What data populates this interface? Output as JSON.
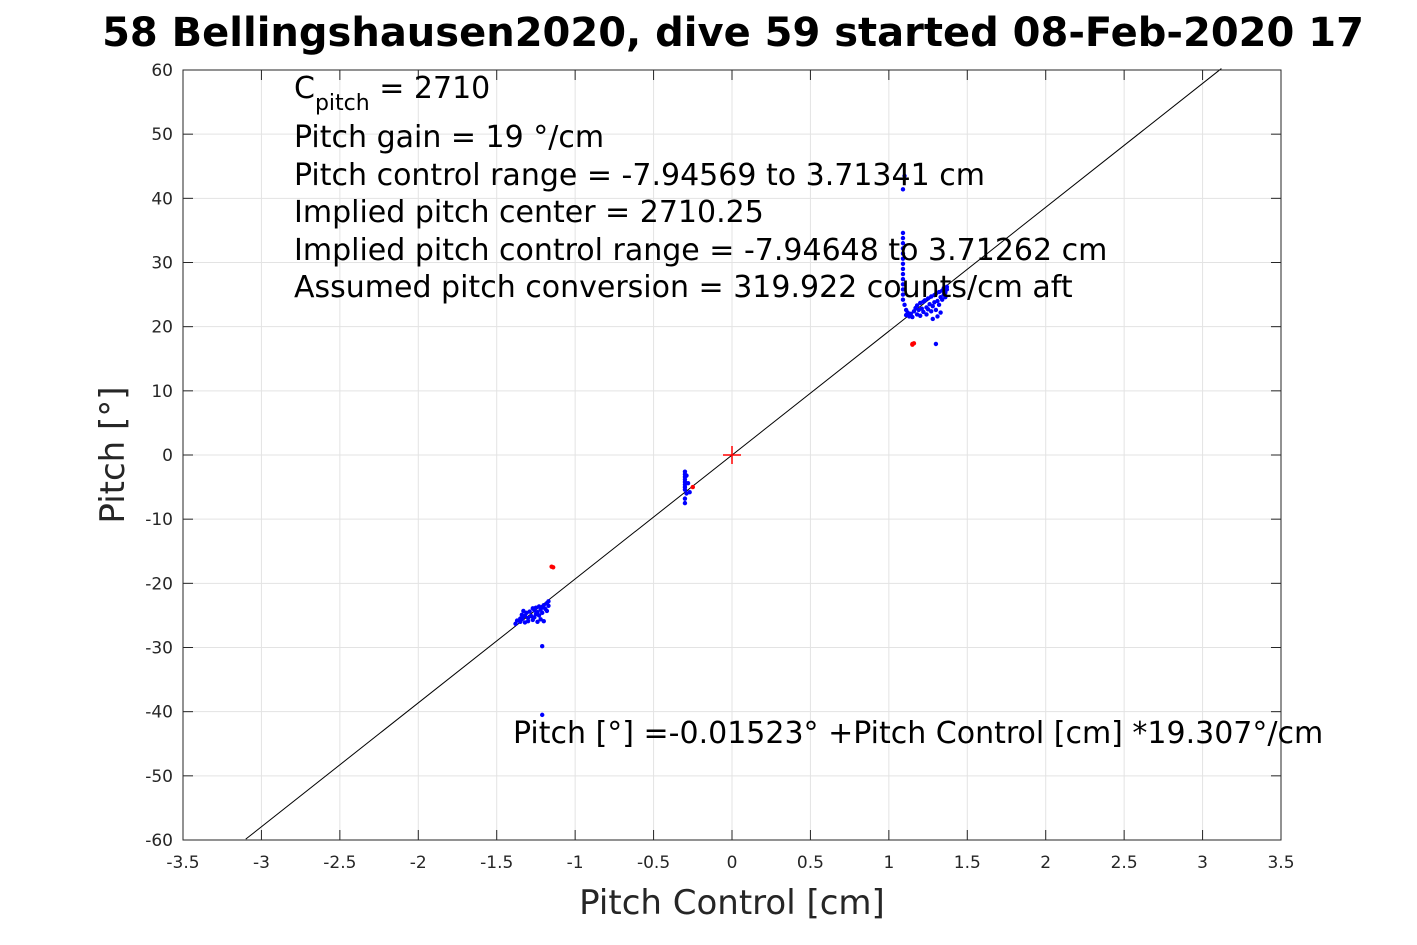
{
  "chart_data": {
    "type": "scatter",
    "title": "58 Bellingshausen2020, dive 59 started 08-Feb-2020 17",
    "xlabel": "Pitch Control [cm]",
    "ylabel": "Pitch [°]",
    "xlim": [
      -3.5,
      3.5
    ],
    "ylim": [
      -60,
      60
    ],
    "grid": true,
    "x_ticks": [
      -3.5,
      -3,
      -2.5,
      -2,
      -1.5,
      -1,
      -0.5,
      0,
      0.5,
      1,
      1.5,
      2,
      2.5,
      3,
      3.5
    ],
    "x_tick_labels": [
      "-3.5",
      "-3",
      "-2.5",
      "-2",
      "-1.5",
      "-1",
      "-0.5",
      "0",
      "0.5",
      "1",
      "1.5",
      "2",
      "2.5",
      "3",
      "3.5"
    ],
    "y_ticks": [
      60,
      50,
      40,
      30,
      20,
      10,
      0,
      -10,
      -20,
      -30,
      -40,
      -50,
      -60
    ],
    "y_tick_labels": [
      "60",
      "50",
      "40",
      "30",
      "20",
      "10",
      "0",
      "-10",
      "-20",
      "-30",
      "-40",
      "-50",
      "-60"
    ],
    "annotations": {
      "c_pitch_main": "C",
      "c_pitch_sub": "pitch",
      "c_pitch_rest": " = 2710",
      "lines": [
        "Pitch gain = 19 °/cm",
        "Pitch control range = -7.94569 to 3.71341 cm",
        "Implied pitch center = 2710.25",
        "Implied pitch control range = -7.94648 to 3.71262 cm",
        "Assumed pitch conversion = 319.922 counts/cm aft"
      ],
      "fit_equation": "Pitch [°] =-0.01523° +Pitch Control [cm] *19.307°/cm"
    },
    "fit_line": {
      "intercept": -0.01523,
      "slope": 19.307,
      "x_range": [
        -3.1,
        3.12
      ],
      "color": "#000000"
    },
    "center_marker": {
      "x": 0,
      "y": 0,
      "color": "#ff0000"
    },
    "series": [
      {
        "color": "#0000ff",
        "points": [
          [
            -1.38,
            -26.3
          ],
          [
            -1.37,
            -25.8
          ],
          [
            -1.35,
            -25.5
          ],
          [
            -1.35,
            -26.0
          ],
          [
            -1.34,
            -24.9
          ],
          [
            -1.34,
            -25.6
          ],
          [
            -1.33,
            -24.3
          ],
          [
            -1.33,
            -25.2
          ],
          [
            -1.32,
            -26.1
          ],
          [
            -1.32,
            -25.0
          ],
          [
            -1.31,
            -24.6
          ],
          [
            -1.3,
            -25.4
          ],
          [
            -1.3,
            -25.9
          ],
          [
            -1.29,
            -24.4
          ],
          [
            -1.28,
            -25.1
          ],
          [
            -1.27,
            -23.9
          ],
          [
            -1.27,
            -25.7
          ],
          [
            -1.26,
            -24.2
          ],
          [
            -1.26,
            -25.3
          ],
          [
            -1.25,
            -23.8
          ],
          [
            -1.25,
            -24.8
          ],
          [
            -1.24,
            -24.5
          ],
          [
            -1.24,
            -26.0
          ],
          [
            -1.23,
            -23.6
          ],
          [
            -1.23,
            -25.0
          ],
          [
            -1.22,
            -24.1
          ],
          [
            -1.22,
            -25.6
          ],
          [
            -1.21,
            -23.7
          ],
          [
            -1.21,
            -24.6
          ],
          [
            -1.2,
            -25.9
          ],
          [
            -1.2,
            -23.4
          ],
          [
            -1.19,
            -24.0
          ],
          [
            -1.18,
            -23.1
          ],
          [
            -1.18,
            -24.3
          ],
          [
            -1.17,
            -22.8
          ],
          [
            -1.17,
            -23.5
          ],
          [
            -1.21,
            -29.8
          ],
          [
            -1.21,
            -40.5
          ],
          [
            -0.3,
            -2.6
          ],
          [
            -0.3,
            -3.0
          ],
          [
            -0.3,
            -3.4
          ],
          [
            -0.3,
            -3.8
          ],
          [
            -0.3,
            -4.2
          ],
          [
            -0.3,
            -4.6
          ],
          [
            -0.3,
            -5.0
          ],
          [
            -0.3,
            -5.4
          ],
          [
            -0.29,
            -6.0
          ],
          [
            -0.3,
            -6.8
          ],
          [
            -0.3,
            -7.5
          ],
          [
            -0.29,
            -3.2
          ],
          [
            -0.27,
            -5.8
          ],
          [
            -0.28,
            -4.4
          ],
          [
            1.09,
            41.4
          ],
          [
            1.1,
            43.5
          ],
          [
            1.09,
            34.6
          ],
          [
            1.09,
            33.8
          ],
          [
            1.09,
            33.0
          ],
          [
            1.09,
            32.2
          ],
          [
            1.09,
            31.4
          ],
          [
            1.09,
            30.6
          ],
          [
            1.09,
            29.8
          ],
          [
            1.09,
            29.0
          ],
          [
            1.09,
            28.2
          ],
          [
            1.09,
            27.4
          ],
          [
            1.09,
            26.6
          ],
          [
            1.09,
            25.8
          ],
          [
            1.09,
            25.0
          ],
          [
            1.09,
            24.2
          ],
          [
            1.1,
            23.4
          ],
          [
            1.11,
            22.6
          ],
          [
            1.11,
            21.8
          ],
          [
            1.12,
            22.2
          ],
          [
            1.13,
            21.6
          ],
          [
            1.14,
            22.0
          ],
          [
            1.15,
            21.5
          ],
          [
            1.16,
            22.4
          ],
          [
            1.17,
            22.9
          ],
          [
            1.18,
            21.9
          ],
          [
            1.18,
            23.3
          ],
          [
            1.19,
            22.6
          ],
          [
            1.2,
            23.7
          ],
          [
            1.2,
            21.7
          ],
          [
            1.21,
            22.8
          ],
          [
            1.22,
            23.9
          ],
          [
            1.22,
            22.3
          ],
          [
            1.23,
            24.1
          ],
          [
            1.24,
            23.0
          ],
          [
            1.24,
            21.9
          ],
          [
            1.25,
            24.4
          ],
          [
            1.25,
            22.7
          ],
          [
            1.26,
            23.5
          ],
          [
            1.27,
            24.7
          ],
          [
            1.27,
            22.4
          ],
          [
            1.28,
            23.2
          ],
          [
            1.28,
            21.2
          ],
          [
            1.29,
            24.9
          ],
          [
            1.29,
            23.8
          ],
          [
            1.3,
            22.6
          ],
          [
            1.3,
            25.1
          ],
          [
            1.31,
            24.0
          ],
          [
            1.31,
            21.6
          ],
          [
            1.32,
            25.4
          ],
          [
            1.32,
            23.4
          ],
          [
            1.33,
            24.6
          ],
          [
            1.33,
            22.2
          ],
          [
            1.34,
            25.6
          ],
          [
            1.34,
            24.2
          ],
          [
            1.35,
            25.0
          ],
          [
            1.35,
            26.0
          ],
          [
            1.36,
            25.3
          ],
          [
            1.36,
            24.6
          ],
          [
            1.37,
            25.8
          ],
          [
            1.37,
            26.2
          ],
          [
            1.3,
            17.3
          ]
        ]
      },
      {
        "color": "#ff0000",
        "points": [
          [
            1.15,
            17.3
          ],
          [
            1.16,
            17.4
          ],
          [
            1.15,
            17.2
          ],
          [
            -1.15,
            -17.4
          ],
          [
            -1.14,
            -17.5
          ],
          [
            -0.25,
            -5.0
          ]
        ]
      }
    ]
  }
}
